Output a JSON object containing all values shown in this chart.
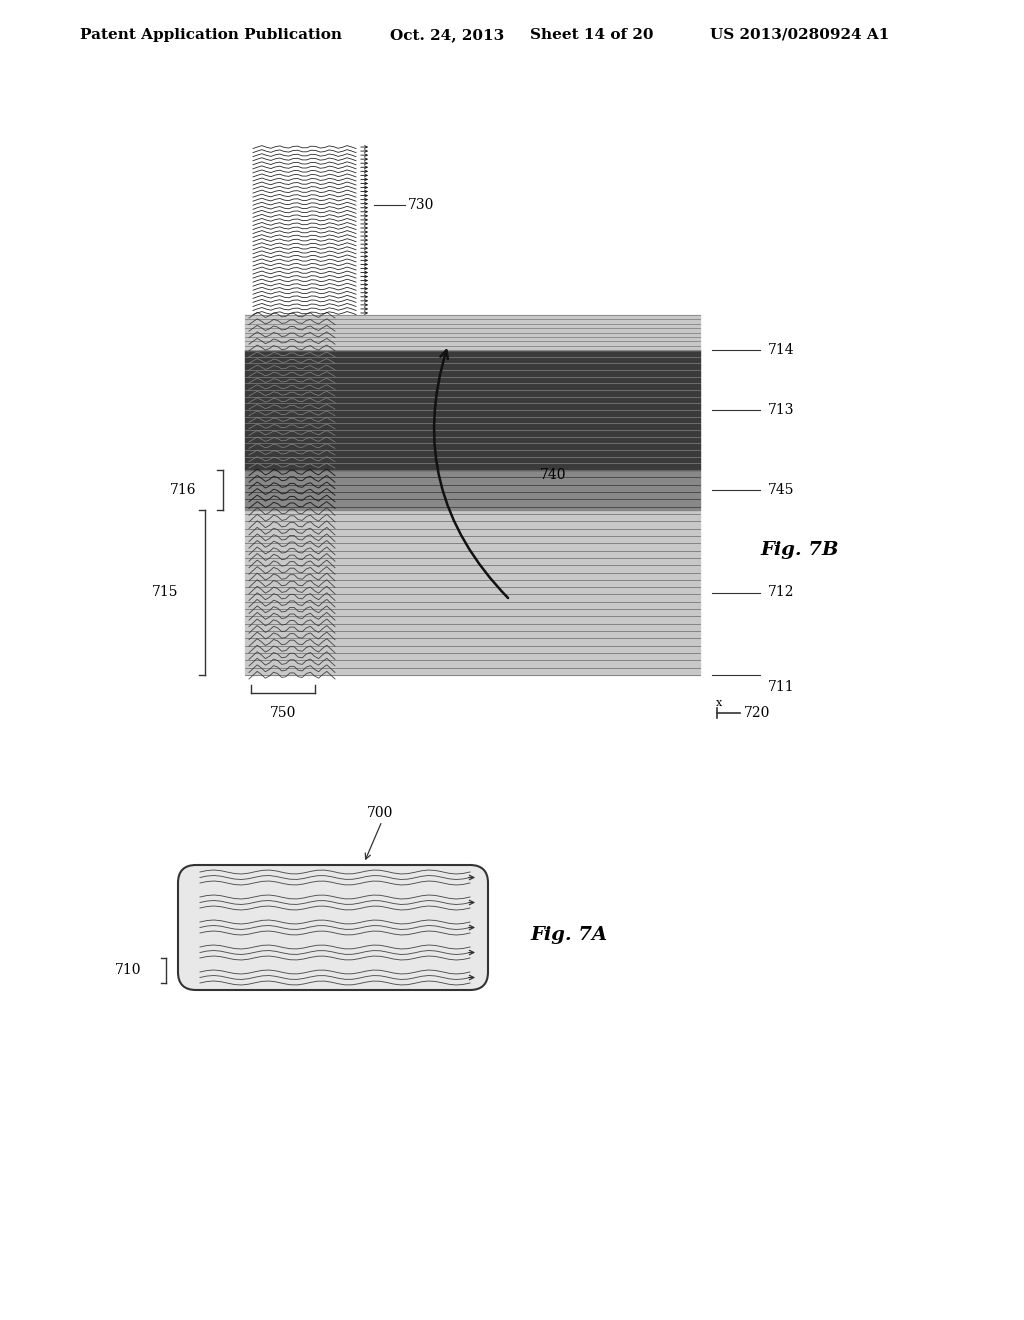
{
  "bg_color": "#ffffff",
  "header_text": "Patent Application Publication",
  "header_date": "Oct. 24, 2013",
  "header_sheet": "Sheet 14 of 20",
  "header_patent": "US 2013/0280924 A1",
  "fig7A_label": "Fig. 7A",
  "fig7B_label": "Fig. 7B",
  "label_700": "700",
  "label_710": "710",
  "label_711": "711",
  "label_712": "712",
  "label_713": "713",
  "label_714": "714",
  "label_715": "715",
  "label_716": "716",
  "label_720": "720",
  "label_730": "730",
  "label_740": "740",
  "label_745": "745",
  "label_750": "750"
}
